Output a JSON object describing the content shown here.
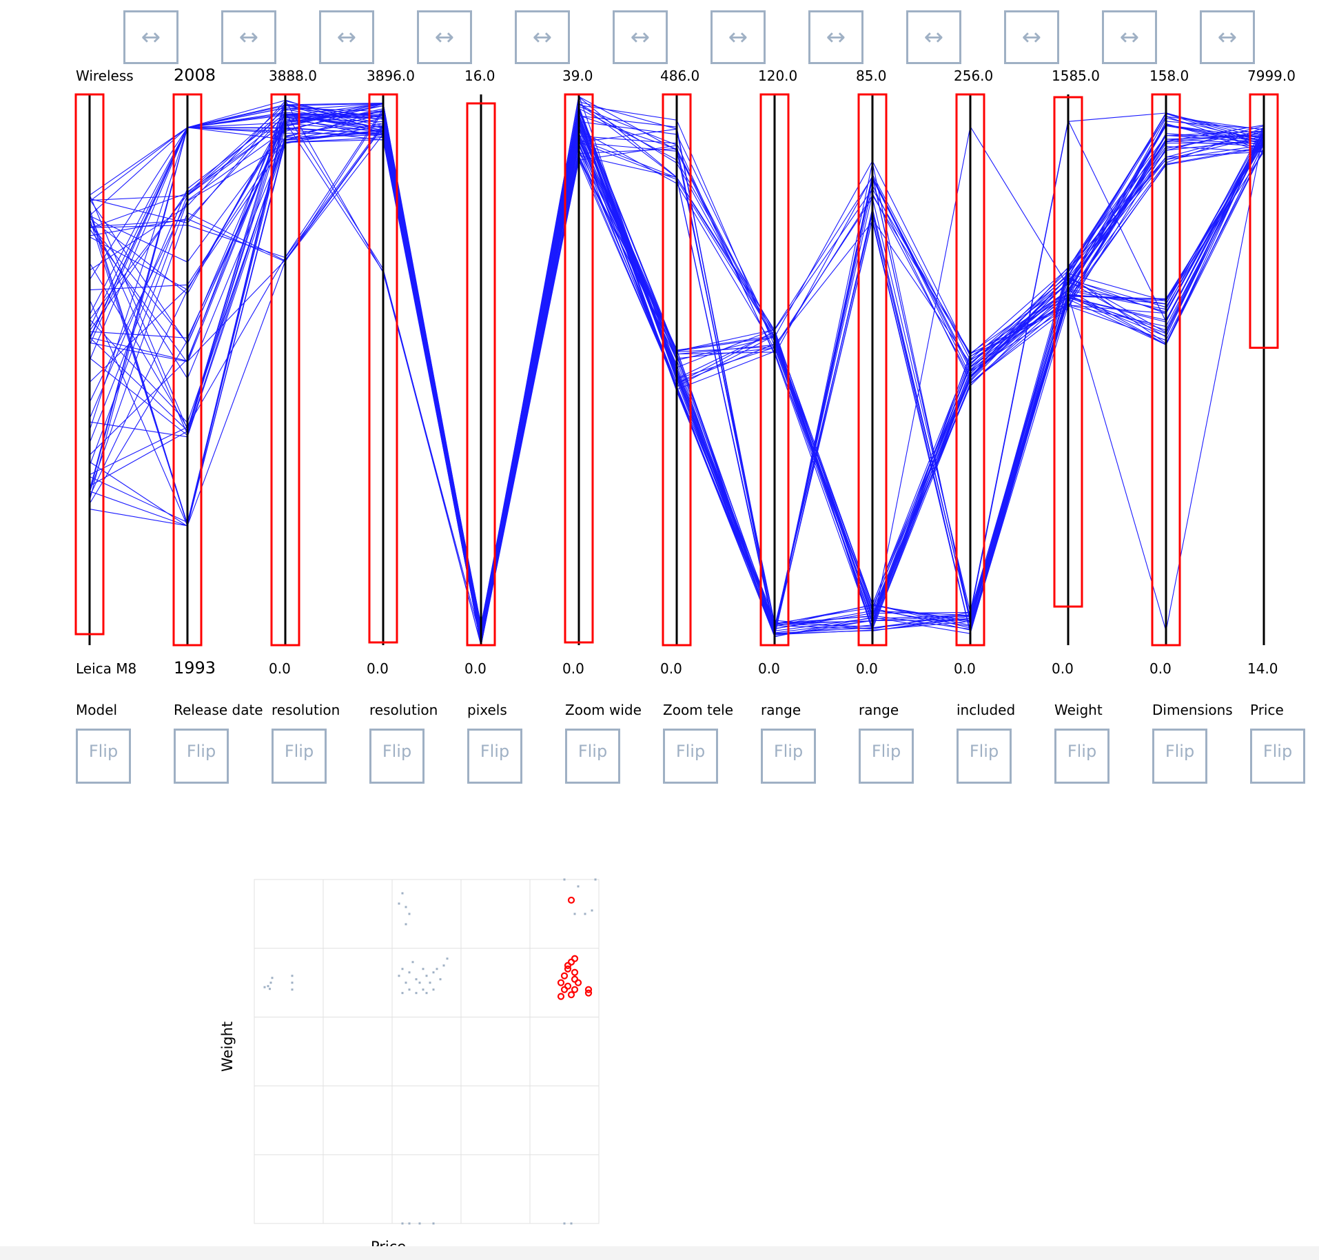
{
  "colors": {
    "polyline": "#1a1aff",
    "axis": "#000000",
    "brush": "#ff0000",
    "button_border": "#9fb0c4",
    "scatter_dim": "#9fb0c4",
    "scatter_sel": "#ff0000",
    "grid": "#e0e0e0"
  },
  "swap_icon": "↔",
  "flip_label": "Flip",
  "axes": [
    {
      "max": "Wireless",
      "min": "Leica M8",
      "name": "Model"
    },
    {
      "max": "2008",
      "min": "1993",
      "name": "Release date"
    },
    {
      "max": "3888.0",
      "min": "0.0",
      "name": "resolution"
    },
    {
      "max": "3896.0",
      "min": "0.0",
      "name": "resolution"
    },
    {
      "max": "16.0",
      "min": "0.0",
      "name": "pixels"
    },
    {
      "max": "39.0",
      "min": "0.0",
      "name": "Zoom wide"
    },
    {
      "max": "486.0",
      "min": "0.0",
      "name": "Zoom tele"
    },
    {
      "max": "120.0",
      "min": "0.0",
      "name": "range"
    },
    {
      "max": "85.0",
      "min": "0.0",
      "name": "range"
    },
    {
      "max": "256.0",
      "min": "0.0",
      "name": "included"
    },
    {
      "max": "1585.0",
      "min": "0.0",
      "name": "Weight"
    },
    {
      "max": "158.0",
      "min": "0.0",
      "name": "Dimensions"
    },
    {
      "max": "7999.0",
      "min": "14.0",
      "name": "Price"
    }
  ],
  "brush_fractions": [
    [
      0.0,
      0.98
    ],
    [
      0.0,
      1.0
    ],
    [
      0.0,
      1.0
    ],
    [
      0.0,
      0.995
    ],
    [
      0.015,
      1.0
    ],
    [
      0.0,
      0.995
    ],
    [
      0.0,
      1.0
    ],
    [
      0.0,
      1.0
    ],
    [
      0.0,
      1.0
    ],
    [
      0.0,
      1.0
    ],
    [
      0.005,
      0.93
    ],
    [
      0.0,
      1.0
    ],
    [
      0.0,
      0.46
    ]
  ],
  "scatter": {
    "xlabel": "Price",
    "ylabel": "Weight"
  },
  "chart_data": {
    "type": "scatter",
    "xlabel": "Price",
    "ylabel": "Weight",
    "grid": true,
    "series": [
      {
        "selected": false,
        "points": [
          [
            0.03,
            0.313
          ],
          [
            0.04,
            0.31
          ],
          [
            0.045,
            0.318
          ],
          [
            0.048,
            0.3
          ],
          [
            0.052,
            0.286
          ],
          [
            0.11,
            0.28
          ],
          [
            0.11,
            0.3
          ],
          [
            0.11,
            0.32
          ],
          [
            0.42,
            0.07
          ],
          [
            0.43,
            0.04
          ],
          [
            0.44,
            0.08
          ],
          [
            0.45,
            0.1
          ],
          [
            0.44,
            0.13
          ],
          [
            0.42,
            0.28
          ],
          [
            0.43,
            0.26
          ],
          [
            0.44,
            0.3
          ],
          [
            0.45,
            0.27
          ],
          [
            0.46,
            0.24
          ],
          [
            0.47,
            0.29
          ],
          [
            0.48,
            0.3
          ],
          [
            0.49,
            0.26
          ],
          [
            0.5,
            0.28
          ],
          [
            0.51,
            0.3
          ],
          [
            0.52,
            0.27
          ],
          [
            0.53,
            0.26
          ],
          [
            0.54,
            0.29
          ],
          [
            0.43,
            0.33
          ],
          [
            0.45,
            0.32
          ],
          [
            0.47,
            0.33
          ],
          [
            0.49,
            0.32
          ],
          [
            0.5,
            0.33
          ],
          [
            0.52,
            0.32
          ],
          [
            0.55,
            0.25
          ],
          [
            0.56,
            0.23
          ],
          [
            0.43,
            1.0
          ],
          [
            0.45,
            1.0
          ],
          [
            0.48,
            1.0
          ],
          [
            0.52,
            1.0
          ],
          [
            0.9,
            0.0
          ],
          [
            0.94,
            0.02
          ],
          [
            0.96,
            0.1
          ],
          [
            0.98,
            0.09
          ],
          [
            0.93,
            0.1
          ],
          [
            0.99,
            0.0
          ],
          [
            0.9,
            1.0
          ],
          [
            0.92,
            1.0
          ]
        ]
      },
      {
        "selected": true,
        "points": [
          [
            0.92,
            0.06
          ],
          [
            0.89,
            0.3
          ],
          [
            0.9,
            0.28
          ],
          [
            0.91,
            0.26
          ],
          [
            0.92,
            0.24
          ],
          [
            0.93,
            0.29
          ],
          [
            0.9,
            0.32
          ],
          [
            0.91,
            0.31
          ],
          [
            0.93,
            0.32
          ],
          [
            0.94,
            0.3
          ],
          [
            0.89,
            0.34
          ],
          [
            0.92,
            0.335
          ],
          [
            0.93,
            0.27
          ],
          [
            0.91,
            0.25
          ],
          [
            0.93,
            0.23
          ],
          [
            0.97,
            0.32
          ],
          [
            0.97,
            0.33
          ]
        ]
      }
    ]
  }
}
